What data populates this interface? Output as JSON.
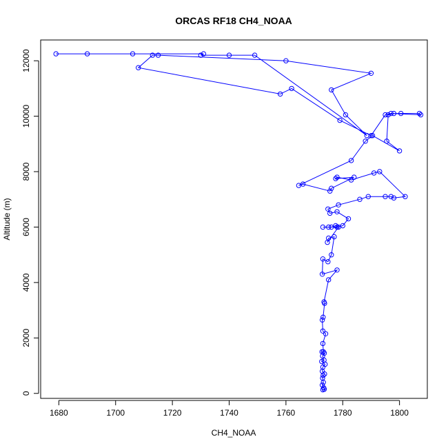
{
  "chart_data": {
    "type": "line",
    "title": "ORCAS RF18 CH4_NOAA",
    "xlabel": "CH4_NOAA",
    "ylabel": "Altitude (m)",
    "xlim": [
      1673.6,
      1809.8
    ],
    "ylim": [
      -180,
      12750
    ],
    "xticks": [
      1680,
      1700,
      1720,
      1740,
      1760,
      1780,
      1800
    ],
    "yticks": [
      0,
      2000,
      4000,
      6000,
      8000,
      10000,
      12000
    ],
    "color": "#0000ff",
    "markers": "open-circle",
    "series": [
      {
        "values": [
          [
            1773.0,
            130
          ],
          [
            1773.5,
            150
          ],
          [
            1773.3,
            200
          ],
          [
            1772.8,
            300
          ],
          [
            1773.2,
            400
          ],
          [
            1772.9,
            550
          ],
          [
            1773.1,
            650
          ],
          [
            1773.6,
            700
          ],
          [
            1772.8,
            800
          ],
          [
            1773.0,
            950
          ],
          [
            1773.8,
            1050
          ],
          [
            1772.6,
            1150
          ],
          [
            1773.4,
            1200
          ],
          [
            1772.9,
            1350
          ],
          [
            1773.5,
            1450
          ],
          [
            1772.7,
            1500
          ],
          [
            1773.2,
            1500
          ],
          [
            1773.0,
            1800
          ],
          [
            1774.0,
            2150
          ],
          [
            1773.0,
            2250
          ],
          [
            1772.8,
            2650
          ],
          [
            1773.1,
            2750
          ],
          [
            1773.6,
            3250
          ],
          [
            1773.4,
            3300
          ],
          [
            1775.0,
            4100
          ],
          [
            1778.0,
            4450
          ],
          [
            1772.8,
            4300
          ],
          [
            1773.0,
            4850
          ],
          [
            1774.8,
            4750
          ],
          [
            1776.0,
            5000
          ],
          [
            1777.0,
            5650
          ],
          [
            1775.0,
            5600
          ],
          [
            1774.6,
            5450
          ],
          [
            1778.5,
            6000
          ],
          [
            1777.5,
            6050
          ],
          [
            1776.0,
            6000
          ],
          [
            1773.0,
            6000
          ],
          [
            1775.0,
            6000
          ],
          [
            1778.0,
            6000
          ],
          [
            1780.0,
            6050
          ],
          [
            1782.0,
            6300
          ],
          [
            1778.0,
            6550
          ],
          [
            1775.5,
            6500
          ],
          [
            1774.8,
            6650
          ],
          [
            1778.5,
            6800
          ],
          [
            1786.0,
            7000
          ],
          [
            1789.0,
            7100
          ],
          [
            1795.0,
            7100
          ],
          [
            1797.0,
            7100
          ],
          [
            1798.0,
            7050
          ],
          [
            1802.0,
            7100
          ],
          [
            1793.0,
            8000
          ],
          [
            1791.0,
            7950
          ],
          [
            1783.0,
            7700
          ],
          [
            1778.0,
            7800
          ],
          [
            1777.5,
            7750
          ],
          [
            1784.0,
            7800
          ],
          [
            1776.0,
            7400
          ],
          [
            1775.5,
            7300
          ],
          [
            1766.0,
            7550
          ],
          [
            1764.5,
            7500
          ],
          [
            1783.0,
            8400
          ],
          [
            1788.0,
            9100
          ],
          [
            1790.5,
            9300
          ],
          [
            1800.0,
            8750
          ],
          [
            1795.5,
            9100
          ],
          [
            1796.0,
            10050
          ],
          [
            1798.0,
            10100
          ],
          [
            1800.5,
            10100
          ],
          [
            1807.0,
            10100
          ],
          [
            1807.5,
            10050
          ],
          [
            1797.0,
            10100
          ],
          [
            1795.0,
            10050
          ],
          [
            1790.0,
            9300
          ],
          [
            1779.0,
            9850
          ],
          [
            1762.0,
            11000
          ],
          [
            1758.0,
            10800
          ],
          [
            1708.0,
            11750
          ],
          [
            1713.0,
            12200
          ],
          [
            1715.0,
            12200
          ],
          [
            1760.0,
            12000
          ],
          [
            1790.0,
            11550
          ],
          [
            1776.0,
            10950
          ],
          [
            1781.0,
            10050
          ],
          [
            1788.5,
            9300
          ],
          [
            1749.0,
            12200
          ],
          [
            1740.0,
            12200
          ],
          [
            1730.0,
            12200
          ],
          [
            1731.0,
            12250
          ],
          [
            1706.0,
            12250
          ],
          [
            1690.0,
            12250
          ],
          [
            1679.0,
            12250
          ]
        ]
      }
    ]
  }
}
